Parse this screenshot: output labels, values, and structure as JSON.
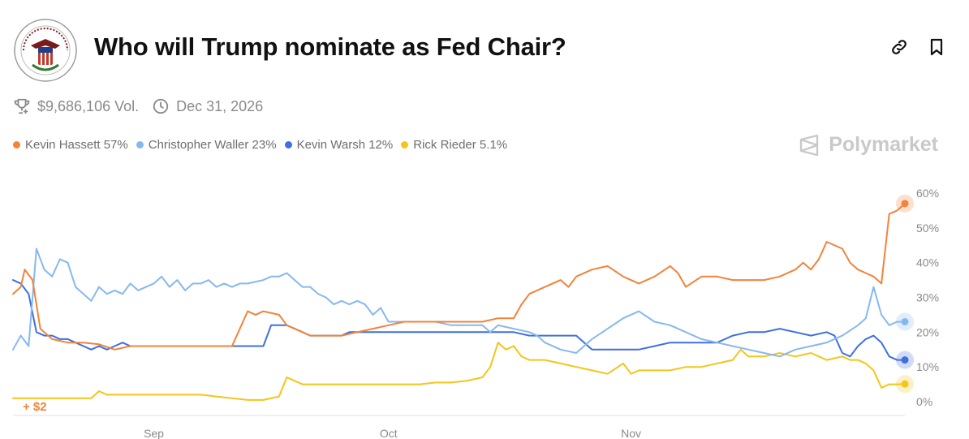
{
  "header": {
    "title": "Who will Trump nominate as Fed Chair?",
    "logo_alt": "Board of Governors of the Federal Reserve System seal",
    "logo_text": "BOARD OF GOVERNORS OF THE FEDERAL RESERVE SYSTEM",
    "link_icon": "link-icon",
    "bookmark_icon": "bookmark-icon"
  },
  "meta": {
    "volume": "$9,686,106 Vol.",
    "end_date": "Dec 31, 2026",
    "trophy_icon": "trophy-icon",
    "clock_icon": "clock-icon"
  },
  "brand": {
    "name": "Polymarket"
  },
  "chart_data": {
    "type": "line",
    "title": "Who will Trump nominate as Fed Chair?",
    "ylim": [
      0,
      60
    ],
    "yticks": [
      "60%",
      "50%",
      "40%",
      "30%",
      "20%",
      "10%",
      "0%"
    ],
    "yticks_values": [
      60,
      50,
      40,
      30,
      20,
      10,
      0
    ],
    "xticks": [
      {
        "label": "Sep",
        "day": 18
      },
      {
        "label": "Oct",
        "day": 48
      },
      {
        "label": "Nov",
        "day": 79
      }
    ],
    "x_range": [
      0,
      114
    ],
    "annotation": "+ $2",
    "series": [
      {
        "name": "Kevin Hassett",
        "label": "Kevin Hassett 57%",
        "current": 57,
        "color": "#f2833a",
        "points": [
          [
            0,
            31
          ],
          [
            1,
            33
          ],
          [
            1.5,
            38
          ],
          [
            2.5,
            35
          ],
          [
            3.5,
            21
          ],
          [
            5,
            18
          ],
          [
            7,
            17
          ],
          [
            9,
            17
          ],
          [
            11,
            16.5
          ],
          [
            13,
            15
          ],
          [
            15,
            16
          ],
          [
            17,
            16
          ],
          [
            19,
            16
          ],
          [
            21,
            16
          ],
          [
            23,
            16
          ],
          [
            25,
            16
          ],
          [
            27,
            16
          ],
          [
            28,
            16
          ],
          [
            30,
            26
          ],
          [
            31,
            25
          ],
          [
            32,
            26
          ],
          [
            34,
            25
          ],
          [
            35,
            22
          ],
          [
            37,
            20
          ],
          [
            38,
            19
          ],
          [
            40,
            19
          ],
          [
            42,
            19
          ],
          [
            44,
            20
          ],
          [
            46,
            21
          ],
          [
            48,
            22
          ],
          [
            50,
            23
          ],
          [
            52,
            23
          ],
          [
            54,
            23
          ],
          [
            56,
            23
          ],
          [
            58,
            23
          ],
          [
            60,
            23
          ],
          [
            62,
            24
          ],
          [
            64,
            24
          ],
          [
            65,
            28
          ],
          [
            66,
            31
          ],
          [
            68,
            33
          ],
          [
            70,
            35
          ],
          [
            71,
            33
          ],
          [
            72,
            36
          ],
          [
            74,
            38
          ],
          [
            76,
            39
          ],
          [
            78,
            36
          ],
          [
            80,
            34
          ],
          [
            82,
            36
          ],
          [
            84,
            39
          ],
          [
            85,
            37
          ],
          [
            86,
            33
          ],
          [
            88,
            36
          ],
          [
            90,
            36
          ],
          [
            92,
            35
          ],
          [
            94,
            35
          ],
          [
            96,
            35
          ],
          [
            98,
            36
          ],
          [
            100,
            38
          ],
          [
            101,
            40
          ],
          [
            102,
            38
          ],
          [
            103,
            41
          ],
          [
            104,
            46
          ],
          [
            106,
            44
          ],
          [
            107,
            40
          ],
          [
            108,
            38
          ],
          [
            109,
            37
          ],
          [
            110,
            36
          ],
          [
            111,
            34
          ],
          [
            112,
            54
          ],
          [
            113,
            55
          ],
          [
            114,
            57
          ]
        ]
      },
      {
        "name": "Christopher Waller",
        "label": "Christopher Waller 23%",
        "current": 23,
        "color": "#86b8f0",
        "points": [
          [
            0,
            15
          ],
          [
            1,
            19
          ],
          [
            2,
            16
          ],
          [
            3,
            44
          ],
          [
            4,
            38
          ],
          [
            5,
            36
          ],
          [
            6,
            41
          ],
          [
            7,
            40
          ],
          [
            8,
            33
          ],
          [
            9,
            31
          ],
          [
            10,
            29
          ],
          [
            11,
            33
          ],
          [
            12,
            31
          ],
          [
            13,
            32
          ],
          [
            14,
            31
          ],
          [
            15,
            34
          ],
          [
            16,
            32
          ],
          [
            17,
            33
          ],
          [
            18,
            34
          ],
          [
            19,
            36
          ],
          [
            20,
            33
          ],
          [
            21,
            35
          ],
          [
            22,
            32
          ],
          [
            23,
            34
          ],
          [
            24,
            34
          ],
          [
            25,
            35
          ],
          [
            26,
            33
          ],
          [
            27,
            34
          ],
          [
            28,
            33
          ],
          [
            29,
            34
          ],
          [
            30,
            34
          ],
          [
            32,
            35
          ],
          [
            33,
            36
          ],
          [
            34,
            36
          ],
          [
            35,
            37
          ],
          [
            36,
            35
          ],
          [
            37,
            33
          ],
          [
            38,
            33
          ],
          [
            39,
            31
          ],
          [
            40,
            30
          ],
          [
            41,
            28
          ],
          [
            42,
            29
          ],
          [
            43,
            28
          ],
          [
            44,
            29
          ],
          [
            45,
            28
          ],
          [
            46,
            25
          ],
          [
            47,
            27
          ],
          [
            48,
            23
          ],
          [
            50,
            23
          ],
          [
            52,
            23
          ],
          [
            54,
            23
          ],
          [
            56,
            22
          ],
          [
            58,
            22
          ],
          [
            60,
            22
          ],
          [
            61,
            20
          ],
          [
            62,
            22
          ],
          [
            64,
            21
          ],
          [
            66,
            20
          ],
          [
            67,
            19
          ],
          [
            68,
            17
          ],
          [
            70,
            15
          ],
          [
            72,
            14
          ],
          [
            74,
            18
          ],
          [
            76,
            21
          ],
          [
            78,
            24
          ],
          [
            80,
            26
          ],
          [
            82,
            23
          ],
          [
            84,
            22
          ],
          [
            86,
            20
          ],
          [
            88,
            18
          ],
          [
            90,
            17
          ],
          [
            92,
            16
          ],
          [
            94,
            15
          ],
          [
            96,
            14
          ],
          [
            98,
            13
          ],
          [
            100,
            15
          ],
          [
            102,
            16
          ],
          [
            104,
            17
          ],
          [
            106,
            19
          ],
          [
            108,
            22
          ],
          [
            109,
            24
          ],
          [
            110,
            33
          ],
          [
            111,
            25
          ],
          [
            112,
            22
          ],
          [
            113,
            23
          ],
          [
            114,
            23
          ]
        ]
      },
      {
        "name": "Kevin Warsh",
        "label": "Kevin Warsh 12%",
        "current": 12,
        "color": "#3f6fe0",
        "points": [
          [
            0,
            35
          ],
          [
            1,
            34
          ],
          [
            2,
            31
          ],
          [
            3,
            20
          ],
          [
            4,
            19
          ],
          [
            5,
            19
          ],
          [
            6,
            18
          ],
          [
            7,
            18
          ],
          [
            8,
            17
          ],
          [
            9,
            16
          ],
          [
            10,
            15
          ],
          [
            11,
            16
          ],
          [
            12,
            15
          ],
          [
            13,
            16
          ],
          [
            14,
            17
          ],
          [
            15,
            16
          ],
          [
            16,
            16
          ],
          [
            17,
            16
          ],
          [
            18,
            16
          ],
          [
            19,
            16
          ],
          [
            20,
            16
          ],
          [
            21,
            16
          ],
          [
            22,
            16
          ],
          [
            23,
            16
          ],
          [
            24,
            16
          ],
          [
            25,
            16
          ],
          [
            26,
            16
          ],
          [
            27,
            16
          ],
          [
            28,
            16
          ],
          [
            29,
            16
          ],
          [
            30,
            16
          ],
          [
            31,
            16
          ],
          [
            32,
            16
          ],
          [
            33,
            22
          ],
          [
            34,
            22
          ],
          [
            35,
            22
          ],
          [
            36,
            21
          ],
          [
            37,
            20
          ],
          [
            38,
            19
          ],
          [
            39,
            19
          ],
          [
            40,
            19
          ],
          [
            41,
            19
          ],
          [
            42,
            19
          ],
          [
            43,
            20
          ],
          [
            44,
            20
          ],
          [
            45,
            20
          ],
          [
            46,
            20
          ],
          [
            48,
            20
          ],
          [
            50,
            20
          ],
          [
            52,
            20
          ],
          [
            54,
            20
          ],
          [
            56,
            20
          ],
          [
            58,
            20
          ],
          [
            60,
            20
          ],
          [
            62,
            20
          ],
          [
            64,
            20
          ],
          [
            66,
            19
          ],
          [
            68,
            19
          ],
          [
            70,
            19
          ],
          [
            72,
            19
          ],
          [
            74,
            15
          ],
          [
            76,
            15
          ],
          [
            78,
            15
          ],
          [
            80,
            15
          ],
          [
            82,
            16
          ],
          [
            84,
            17
          ],
          [
            86,
            17
          ],
          [
            88,
            17
          ],
          [
            90,
            17
          ],
          [
            92,
            19
          ],
          [
            94,
            20
          ],
          [
            96,
            20
          ],
          [
            98,
            21
          ],
          [
            100,
            20
          ],
          [
            102,
            19
          ],
          [
            104,
            20
          ],
          [
            105,
            19
          ],
          [
            106,
            14
          ],
          [
            107,
            13
          ],
          [
            108,
            16
          ],
          [
            109,
            18
          ],
          [
            110,
            19
          ],
          [
            111,
            17
          ],
          [
            112,
            13
          ],
          [
            113,
            12
          ],
          [
            114,
            12
          ]
        ]
      },
      {
        "name": "Rick Rieder",
        "label": "Rick Rieder 5.1%",
        "current": 5.1,
        "color": "#f5c518",
        "points": [
          [
            0,
            1
          ],
          [
            2,
            1
          ],
          [
            4,
            1
          ],
          [
            6,
            1
          ],
          [
            8,
            1
          ],
          [
            10,
            1
          ],
          [
            11,
            3
          ],
          [
            12,
            2
          ],
          [
            14,
            2
          ],
          [
            16,
            2
          ],
          [
            18,
            2
          ],
          [
            20,
            2
          ],
          [
            22,
            2
          ],
          [
            24,
            2
          ],
          [
            26,
            1.5
          ],
          [
            28,
            1
          ],
          [
            30,
            0.5
          ],
          [
            32,
            0.5
          ],
          [
            34,
            1.5
          ],
          [
            35,
            7
          ],
          [
            36,
            6
          ],
          [
            37,
            5
          ],
          [
            38,
            5
          ],
          [
            40,
            5
          ],
          [
            42,
            5
          ],
          [
            44,
            5
          ],
          [
            46,
            5
          ],
          [
            48,
            5
          ],
          [
            50,
            5
          ],
          [
            52,
            5
          ],
          [
            54,
            5.5
          ],
          [
            56,
            5.5
          ],
          [
            58,
            6
          ],
          [
            60,
            7
          ],
          [
            61,
            10
          ],
          [
            62,
            17
          ],
          [
            63,
            15
          ],
          [
            64,
            16
          ],
          [
            65,
            13
          ],
          [
            66,
            12
          ],
          [
            68,
            12
          ],
          [
            70,
            11
          ],
          [
            72,
            10
          ],
          [
            74,
            9
          ],
          [
            76,
            8
          ],
          [
            78,
            11
          ],
          [
            79,
            8
          ],
          [
            80,
            9
          ],
          [
            82,
            9
          ],
          [
            84,
            9
          ],
          [
            86,
            10
          ],
          [
            88,
            10
          ],
          [
            90,
            11
          ],
          [
            92,
            12
          ],
          [
            93,
            15
          ],
          [
            94,
            13
          ],
          [
            96,
            13
          ],
          [
            98,
            14
          ],
          [
            100,
            13
          ],
          [
            102,
            14
          ],
          [
            104,
            12
          ],
          [
            106,
            13
          ],
          [
            107,
            12
          ],
          [
            108,
            12
          ],
          [
            109,
            11
          ],
          [
            110,
            9
          ],
          [
            111,
            4
          ],
          [
            112,
            5
          ],
          [
            113,
            5
          ],
          [
            114,
            5.1
          ]
        ]
      }
    ]
  }
}
